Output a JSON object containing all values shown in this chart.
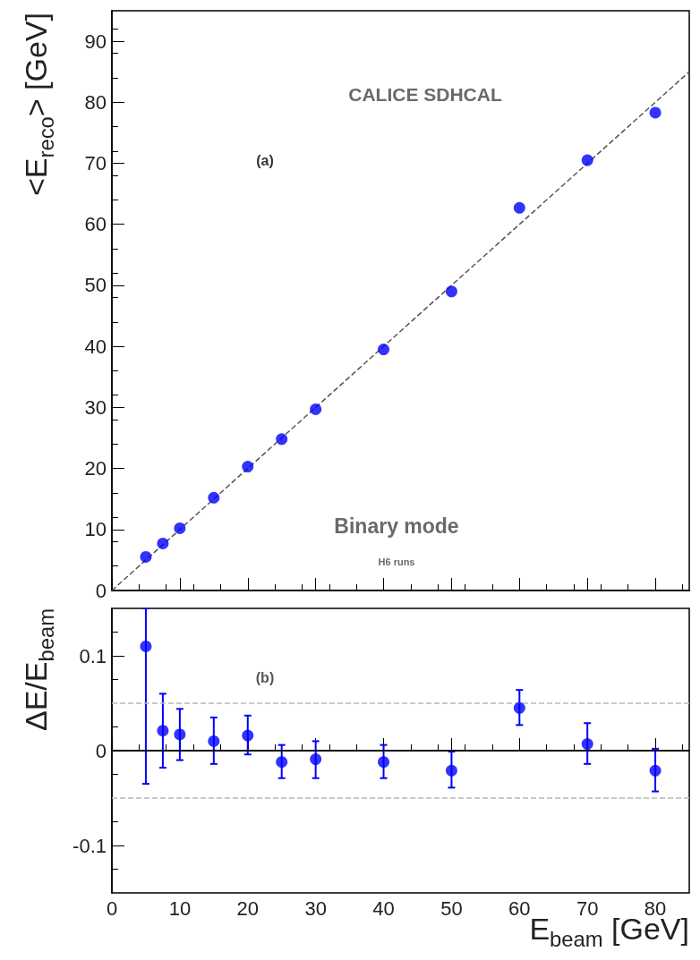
{
  "chart_data": [
    {
      "type": "scatter",
      "ylabel": "<E$_{reco}$> [GeV]",
      "xlim": [
        0,
        85
      ],
      "ylim": [
        0,
        95
      ],
      "xticks": [
        0,
        10,
        20,
        30,
        40,
        50,
        60,
        70,
        80
      ],
      "yticks": [
        0,
        10,
        20,
        30,
        40,
        50,
        60,
        70,
        80,
        90
      ],
      "tick_labels": "y",
      "grid": false,
      "marker": "circle",
      "annotations": [
        "CALICE SDHCAL",
        "(a)",
        "Binary mode",
        "H6 runs"
      ],
      "series": [
        {
          "color": "#0000ff",
          "x": [
            5,
            7.5,
            10,
            15,
            20,
            25,
            30,
            40,
            50,
            60,
            70,
            80
          ],
          "values": [
            5.5,
            7.7,
            10.2,
            15.2,
            20.3,
            24.8,
            29.7,
            39.5,
            49.0,
            62.7,
            70.5,
            78.3
          ]
        },
        {
          "type": "line",
          "color": "#555555",
          "line_style": "dashed",
          "marker": "none",
          "x": [
            0,
            85
          ],
          "values": [
            0,
            85
          ]
        }
      ]
    },
    {
      "type": "scatter",
      "xlabel": "E$_{beam}$ [GeV]",
      "ylabel": "ΔE/E$_{beam}$",
      "xlim": [
        0,
        85
      ],
      "ylim": [
        -0.15,
        0.15
      ],
      "xticks": [
        0,
        10,
        20,
        30,
        40,
        50,
        60,
        70,
        80
      ],
      "yticks": [
        -0.1,
        0,
        0.1
      ],
      "grid": false,
      "marker": "circle",
      "annotations": [
        "(b)"
      ],
      "ref_lines": [
        {
          "axis": "y",
          "value": 0,
          "color": "#000000",
          "line_style": "solid"
        },
        {
          "axis": "y",
          "value": 0.05,
          "color": "#bbbbbb",
          "line_style": "dashed"
        },
        {
          "axis": "y",
          "value": -0.05,
          "color": "#bbbbbb",
          "line_style": "dashed"
        }
      ],
      "series": [
        {
          "color": "#0000ff",
          "x": [
            5,
            7.5,
            10,
            15,
            20,
            25,
            30,
            40,
            50,
            60,
            70,
            80
          ],
          "values": [
            0.11,
            0.021,
            0.017,
            0.01,
            0.016,
            -0.012,
            -0.009,
            -0.012,
            -0.021,
            0.045,
            0.007,
            -0.021
          ],
          "errors": [
            [
              -0.035,
              0.15
            ],
            [
              -0.018,
              0.06
            ],
            [
              -0.01,
              0.044
            ],
            [
              -0.014,
              0.035
            ],
            [
              -0.004,
              0.037
            ],
            [
              -0.029,
              0.006
            ],
            [
              -0.029,
              0.01
            ],
            [
              -0.029,
              0.006
            ],
            [
              -0.039,
              -0.001
            ],
            [
              0.027,
              0.064
            ],
            [
              -0.014,
              0.029
            ],
            [
              -0.043,
              0.002
            ]
          ]
        }
      ]
    }
  ]
}
